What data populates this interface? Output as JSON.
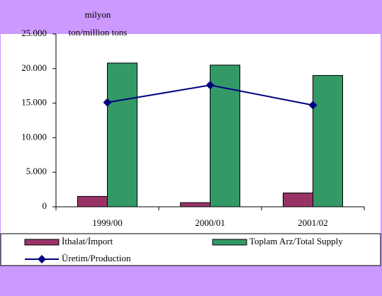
{
  "chart_data": {
    "type": "bar_line",
    "y_label": "milyon ton/million tons",
    "categories": [
      "1999/00",
      "2000/01",
      "2001/02"
    ],
    "series": [
      {
        "name": "İthalat/İmport",
        "color": "#993366",
        "kind": "bar",
        "values": [
          1500,
          600,
          2000
        ]
      },
      {
        "name": "Toplam Arz/Total Supply",
        "color": "#339966",
        "kind": "bar",
        "values": [
          20800,
          20500,
          19000
        ]
      },
      {
        "name": "Üretim/Production",
        "color": "#000080",
        "kind": "line",
        "values": [
          15100,
          17600,
          14700
        ]
      }
    ],
    "ylim": [
      0,
      25000
    ],
    "yticks": [
      0,
      {
        "value": 5000,
        "label": "5.000"
      },
      {
        "value": 10000,
        "label": "10.000"
      },
      {
        "value": 15000,
        "label": "15.000"
      },
      {
        "value": 20000,
        "label": "20.000"
      },
      {
        "value": 25000,
        "label": "25.000"
      }
    ]
  }
}
